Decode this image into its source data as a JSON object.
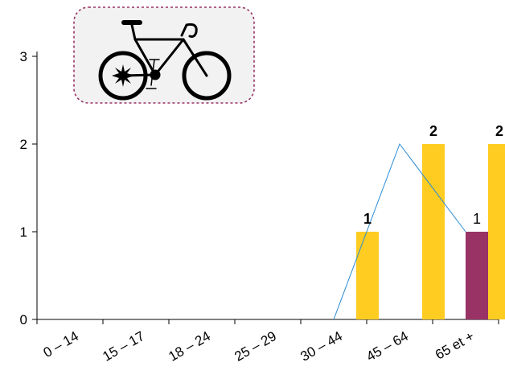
{
  "chart_data": {
    "type": "bar",
    "categories": [
      "0 – 14",
      "15 – 17",
      "18 – 24",
      "25 – 29",
      "30 – 44",
      "45 – 64",
      "65 et +"
    ],
    "series": [
      {
        "values": [
          0,
          0,
          0,
          0,
          0,
          0,
          1
        ],
        "color": "#993366",
        "labels": [
          "",
          "",
          "",
          "",
          "",
          "",
          "1"
        ]
      },
      {
        "values": [
          0,
          0,
          0,
          0,
          1,
          2,
          2
        ],
        "color": "#ffcc22",
        "labels": [
          "",
          "",
          "",
          "",
          "1",
          "2",
          "2"
        ]
      }
    ],
    "line": {
      "values": [
        0,
        2,
        1
      ],
      "from_category_index": 4,
      "color": "#2a8bd4"
    },
    "yticks": [
      "0",
      "1",
      "2",
      "3"
    ],
    "ylim": [
      0,
      3
    ],
    "grid": false,
    "legend": "none",
    "icon": "bicycle-icon"
  }
}
